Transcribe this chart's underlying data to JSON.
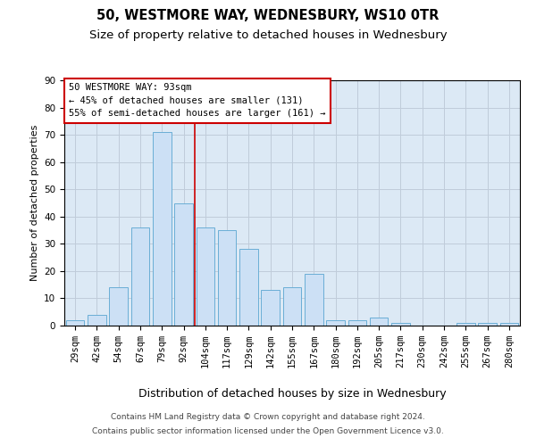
{
  "title": "50, WESTMORE WAY, WEDNESBURY, WS10 0TR",
  "subtitle": "Size of property relative to detached houses in Wednesbury",
  "xlabel": "Distribution of detached houses by size in Wednesbury",
  "ylabel": "Number of detached properties",
  "categories": [
    "29sqm",
    "42sqm",
    "54sqm",
    "67sqm",
    "79sqm",
    "92sqm",
    "104sqm",
    "117sqm",
    "129sqm",
    "142sqm",
    "155sqm",
    "167sqm",
    "180sqm",
    "192sqm",
    "205sqm",
    "217sqm",
    "230sqm",
    "242sqm",
    "255sqm",
    "267sqm",
    "280sqm"
  ],
  "values": [
    2,
    4,
    14,
    36,
    71,
    45,
    36,
    35,
    28,
    13,
    14,
    19,
    2,
    2,
    3,
    1,
    0,
    0,
    1,
    1,
    1
  ],
  "bar_color": "#cce0f5",
  "bar_edge_color": "#6aaed6",
  "bar_width": 0.85,
  "vline_x": 5.5,
  "vline_color": "#cc0000",
  "ylim": [
    0,
    90
  ],
  "yticks": [
    0,
    10,
    20,
    30,
    40,
    50,
    60,
    70,
    80,
    90
  ],
  "background_color": "#ffffff",
  "plot_bg_color": "#dce9f5",
  "grid_color": "#c0ccda",
  "annotation_text": "50 WESTMORE WAY: 93sqm\n← 45% of detached houses are smaller (131)\n55% of semi-detached houses are larger (161) →",
  "ann_edge_color": "#cc0000",
  "ann_face_color": "#ffffff",
  "ann_fontsize": 7.5,
  "footer_line1": "Contains HM Land Registry data © Crown copyright and database right 2024.",
  "footer_line2": "Contains public sector information licensed under the Open Government Licence v3.0.",
  "title_fontsize": 10.5,
  "subtitle_fontsize": 9.5,
  "xlabel_fontsize": 9,
  "ylabel_fontsize": 8,
  "tick_fontsize": 7.5,
  "footer_fontsize": 6.5
}
